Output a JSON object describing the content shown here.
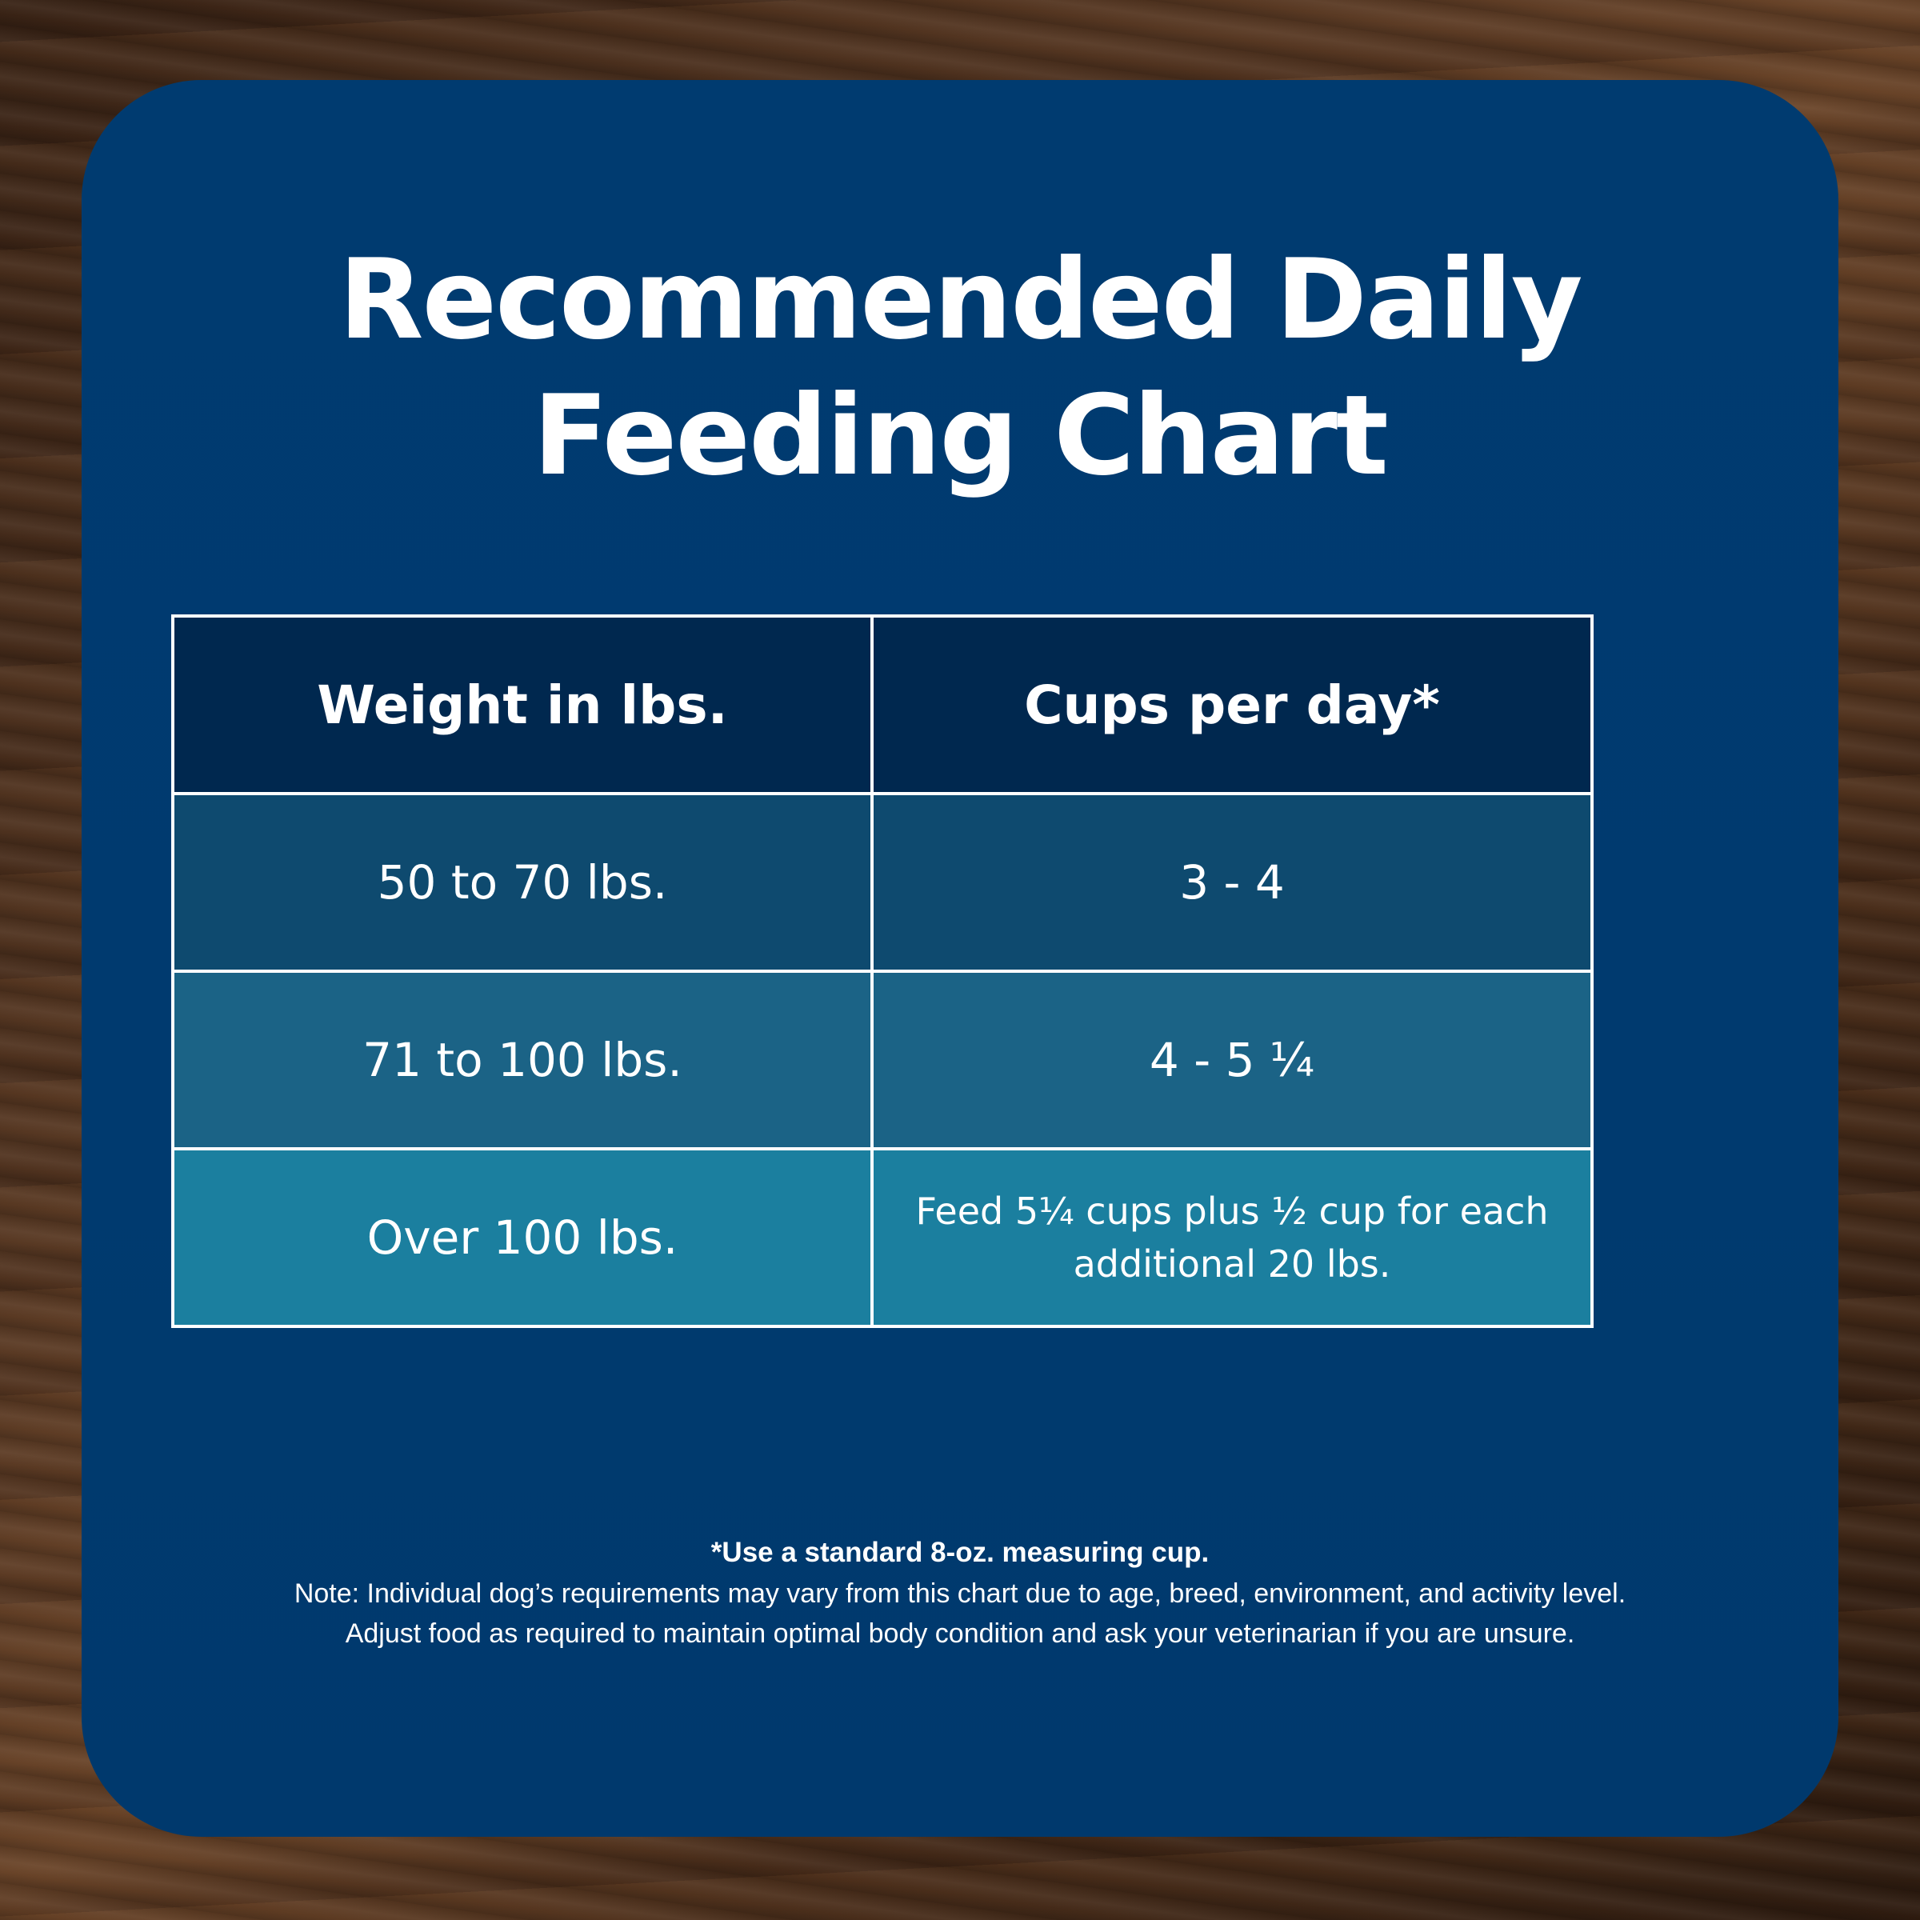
{
  "title_line1": "Recommended Daily",
  "title_line2": "Feeding Chart",
  "chart_data": {
    "type": "table",
    "columns": [
      "Weight in lbs.",
      "Cups per day*"
    ],
    "rows": [
      [
        "50 to 70 lbs.",
        "3 - 4"
      ],
      [
        "71 to 100 lbs.",
        "4 - 5 ¼"
      ],
      [
        "Over 100 lbs.",
        "Feed 5¼ cups plus ½ cup for each additional 20 lbs."
      ]
    ]
  },
  "footnote": {
    "asterisk_note": "*Use a standard 8-oz. measuring cup.",
    "note_line1": "Note: Individual dog’s requirements may vary from this chart due to age, breed, environment, and activity level.",
    "note_line2": "Adjust food as required to maintain optimal body condition and ask your veterinarian if you are unsure."
  },
  "colors": {
    "card_background": "#003b70",
    "header_row": "#00284f",
    "row1": "#0e4a6f",
    "row2": "#1b6386",
    "row3": "#1b7f9f",
    "text": "#ffffff"
  }
}
